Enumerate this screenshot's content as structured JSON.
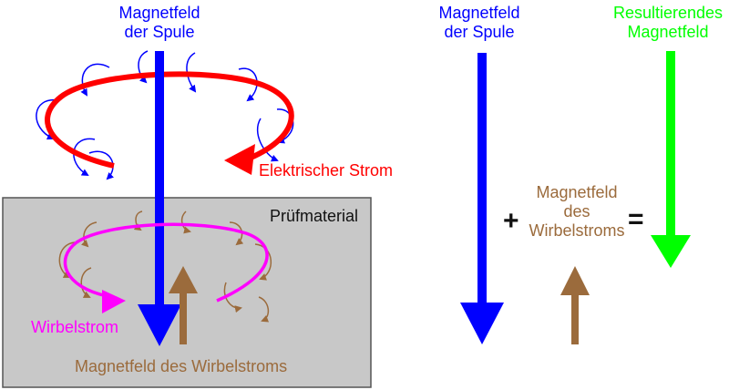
{
  "labels": {
    "coil_field_left": "Magnetfeld\nder Spule",
    "coil_field_right": "Magnetfeld\nder Spule",
    "resulting_field": "Resultierendes\nMagnetfeld",
    "electric_current": "Elektrischer Strom",
    "test_material": "Prüfmaterial",
    "eddy_current": "Wirbelstrom",
    "eddy_field_bottom": "Magnetfeld des Wirbelstroms",
    "eddy_field_right": "Magnetfeld\ndes\nWirbelstroms",
    "plus": "+",
    "equals": "="
  },
  "colors": {
    "coil_field": "#0000ff",
    "electric_current": "#ff0000",
    "eddy_current": "#ff00ff",
    "eddy_field": "#9b6b3c",
    "resulting_field": "#00ff00",
    "material_fill": "#c8c8c8",
    "text_dark": "#111111"
  }
}
